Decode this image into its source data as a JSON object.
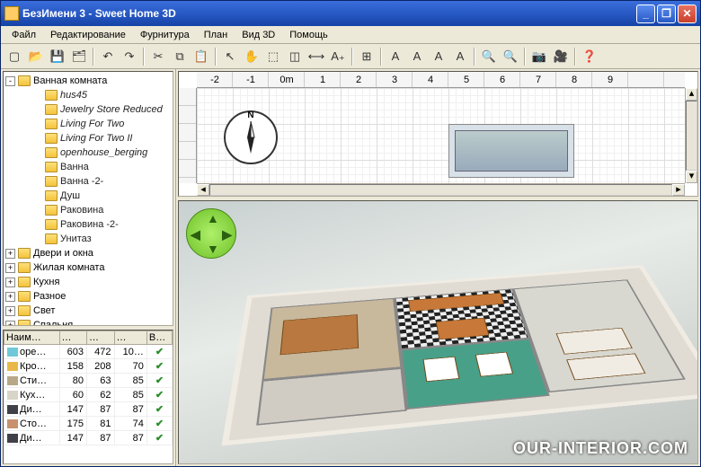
{
  "window": {
    "title": "БезИмени 3 - Sweet Home 3D"
  },
  "menu": [
    "Файл",
    "Редактирование",
    "Фурнитура",
    "План",
    "Вид 3D",
    "Помощь"
  ],
  "toolbar_icons": [
    "new-file",
    "open",
    "save",
    "preferences",
    "|",
    "undo",
    "redo",
    "|",
    "cut",
    "copy",
    "paste",
    "|",
    "select",
    "pan",
    "wall",
    "room",
    "dimension",
    "text",
    "|",
    "add-furniture",
    "|",
    "import",
    "align-left",
    "align-center",
    "align-right",
    "|",
    "zoom-in",
    "zoom-out",
    "|",
    "camera",
    "record",
    "|",
    "help"
  ],
  "toolbar_glyphs": [
    "▢",
    "📂",
    "💾",
    "🗂",
    "|",
    "↶",
    "↷",
    "|",
    "✂",
    "⧉",
    "📋",
    "|",
    "↖",
    "✋",
    "⬚",
    "◫",
    "⟷",
    "A₊",
    "|",
    "⊞",
    "|",
    "A",
    "A",
    "A",
    "A",
    "|",
    "🔍",
    "🔍",
    "|",
    "📷",
    "🎥",
    "|",
    "❓"
  ],
  "tree": {
    "root": {
      "label": "Ванная комната",
      "expanded": true,
      "items": [
        {
          "label": "hus45",
          "type": "item"
        },
        {
          "label": "Jewelry Store Reduced",
          "type": "item"
        },
        {
          "label": "Living For Two",
          "type": "item"
        },
        {
          "label": "Living For Two II",
          "type": "item"
        },
        {
          "label": "openhouse_berging",
          "type": "item"
        },
        {
          "label": "Ванна",
          "type": "obj"
        },
        {
          "label": "Ванна -2-",
          "type": "obj"
        },
        {
          "label": "Душ",
          "type": "obj"
        },
        {
          "label": "Раковина",
          "type": "obj"
        },
        {
          "label": "Раковина -2-",
          "type": "obj"
        },
        {
          "label": "Унитаз",
          "type": "obj"
        }
      ]
    },
    "categories": [
      "Двери и окна",
      "Жилая комната",
      "Кухня",
      "Разное",
      "Свет",
      "Спальня"
    ]
  },
  "table": {
    "headers": [
      "Наим…",
      "…",
      "…",
      "…",
      "В…"
    ],
    "rows": [
      {
        "color": "#6ec8d8",
        "name": "ope…",
        "c1": "603",
        "c2": "472",
        "c3": "10…",
        "v": true
      },
      {
        "color": "#e8b848",
        "name": "Кро…",
        "c1": "158",
        "c2": "208",
        "c3": "70",
        "v": true
      },
      {
        "color": "#b8a888",
        "name": "Сти…",
        "c1": "80",
        "c2": "63",
        "c3": "85",
        "v": true
      },
      {
        "color": "#d8d4c8",
        "name": "Кух…",
        "c1": "60",
        "c2": "62",
        "c3": "85",
        "v": true
      },
      {
        "color": "#404048",
        "name": "Ди…",
        "c1": "147",
        "c2": "87",
        "c3": "87",
        "v": true
      },
      {
        "color": "#c8906c",
        "name": "Сто…",
        "c1": "175",
        "c2": "81",
        "c3": "74",
        "v": true
      },
      {
        "color": "#404048",
        "name": "Ди…",
        "c1": "147",
        "c2": "87",
        "c3": "87",
        "v": true
      }
    ]
  },
  "ruler": {
    "marks": [
      "-2",
      "-1",
      "0m",
      "1",
      "2",
      "3",
      "4",
      "5",
      "6",
      "7",
      "8",
      "9"
    ]
  },
  "watermark": "OUR-INTERIOR.COM",
  "colors": {
    "titlebar_start": "#3a6eda",
    "titlebar_end": "#1543a5",
    "chrome": "#ece9d8",
    "accent": "#2a8c2a"
  }
}
